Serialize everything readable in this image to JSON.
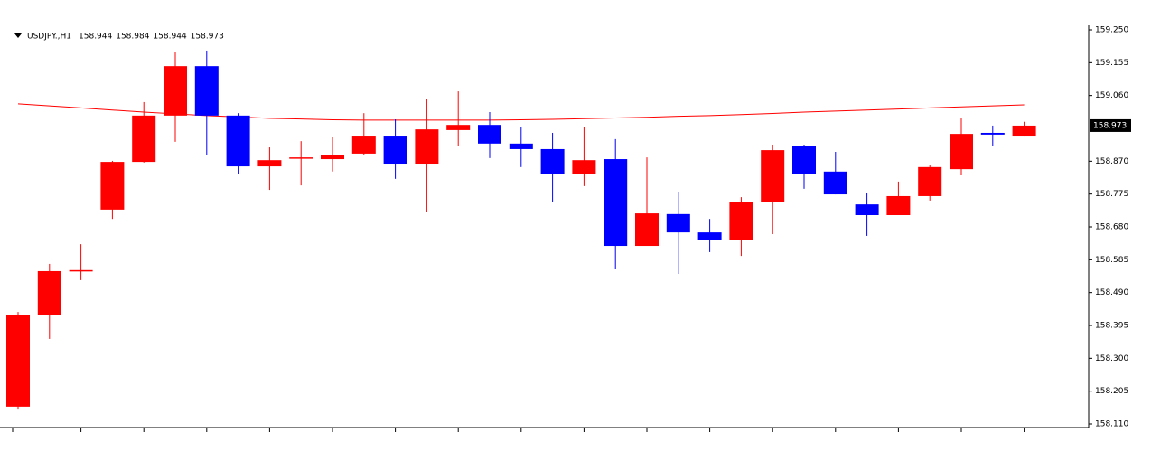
{
  "chart_data": {
    "type": "candlestick",
    "title": "USDJPY.,H1",
    "open": [
      158.16,
      158.424,
      158.551,
      158.73,
      158.868,
      159.002,
      159.145,
      159.002,
      158.855,
      158.879,
      158.876,
      158.892,
      158.944,
      158.863,
      158.96,
      158.975,
      158.921,
      158.905,
      158.832,
      158.876,
      158.625,
      158.717,
      158.664,
      158.643,
      158.751,
      158.913,
      158.84,
      158.745,
      158.714,
      158.769,
      158.847,
      158.952,
      158.944
    ],
    "high": [
      158.434,
      158.573,
      158.63,
      158.871,
      159.041,
      159.187,
      159.19,
      159.009,
      158.91,
      158.928,
      158.939,
      159.009,
      158.991,
      159.049,
      159.072,
      159.012,
      158.97,
      158.952,
      158.97,
      158.934,
      158.881,
      158.782,
      158.703,
      158.766,
      158.918,
      158.918,
      158.897,
      158.777,
      158.811,
      158.858,
      158.994,
      158.973,
      158.984
    ],
    "low": [
      158.154,
      158.356,
      158.526,
      158.703,
      158.866,
      158.926,
      158.887,
      158.832,
      158.787,
      158.8,
      158.84,
      158.887,
      158.819,
      158.724,
      158.913,
      158.879,
      158.853,
      158.751,
      158.798,
      158.557,
      158.625,
      158.544,
      158.607,
      158.596,
      158.659,
      158.79,
      158.774,
      158.654,
      158.714,
      158.756,
      158.829,
      158.913,
      158.944
    ],
    "close": [
      158.426,
      158.552,
      158.555,
      158.868,
      159.002,
      159.145,
      159.002,
      158.855,
      158.873,
      158.881,
      158.889,
      158.944,
      158.863,
      158.962,
      158.975,
      158.921,
      158.905,
      158.832,
      158.873,
      158.625,
      158.719,
      158.664,
      158.643,
      158.751,
      158.902,
      158.834,
      158.774,
      158.714,
      158.769,
      158.853,
      158.949,
      158.947,
      158.973
    ],
    "up_color": "#ff0000",
    "down_color": "#0000ff",
    "overlay_line": {
      "color": "#ff0000",
      "values": [
        159.036,
        159.03,
        159.024,
        159.018,
        159.012,
        159.007,
        159.002,
        158.998,
        158.994,
        158.992,
        158.99,
        158.989,
        158.989,
        158.989,
        158.989,
        158.989,
        158.99,
        158.991,
        158.993,
        158.995,
        158.997,
        159.0,
        159.002,
        159.005,
        159.008,
        159.012,
        159.015,
        159.018,
        159.021,
        159.024,
        159.027,
        159.03,
        159.033
      ]
    },
    "ylim": [
      158.11,
      159.25
    ],
    "yticks": [
      {
        "value": 159.25,
        "label": "159.250"
      },
      159.155,
      {
        "value": 159.06,
        "label": "159.060"
      },
      {
        "value": 158.87,
        "label": "158.870"
      },
      158.775,
      {
        "value": 158.68,
        "label": "158.680"
      },
      158.585,
      {
        "value": 158.49,
        "label": "158.490"
      },
      158.395,
      {
        "value": 158.3,
        "label": "158.300"
      },
      158.205,
      {
        "value": 158.11,
        "label": "158.110"
      }
    ]
  }
}
